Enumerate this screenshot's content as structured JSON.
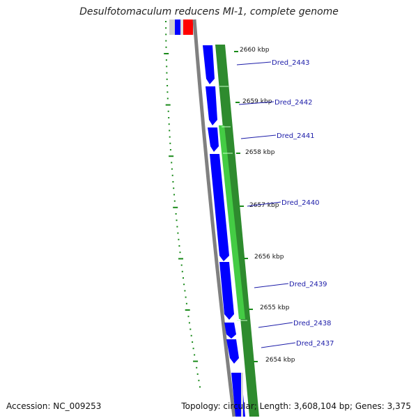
{
  "title": "Desulfotomaculum reducens MI-1, complete genome",
  "footer": {
    "accession": "Accession: NC_009253",
    "summary": "Topology: circular; Length: 3,608,104 bp; Genes: 3,375"
  },
  "ticks": [
    {
      "label": "2660 kbp"
    },
    {
      "label": "2659 kbp"
    },
    {
      "label": "2658 kbp"
    },
    {
      "label": "2657 kbp"
    },
    {
      "label": "2656 kbp"
    },
    {
      "label": "2655 kbp"
    },
    {
      "label": "2654 kbp"
    }
  ],
  "genes": [
    {
      "label": "Dred_2443"
    },
    {
      "label": "Dred_2442"
    },
    {
      "label": "Dred_2441"
    },
    {
      "label": "Dred_2440"
    },
    {
      "label": "Dred_2439"
    },
    {
      "label": "Dred_2438"
    },
    {
      "label": "Dred_2437"
    }
  ],
  "colors": {
    "cds": "#0000ff",
    "blast_hit": "#2e8b2e",
    "blast_hit_light": "#44cc44",
    "backbone": "#808080",
    "gc_skew": "#1a8a1a",
    "highlight": "#ff0000",
    "label": "#1b1ba8"
  }
}
